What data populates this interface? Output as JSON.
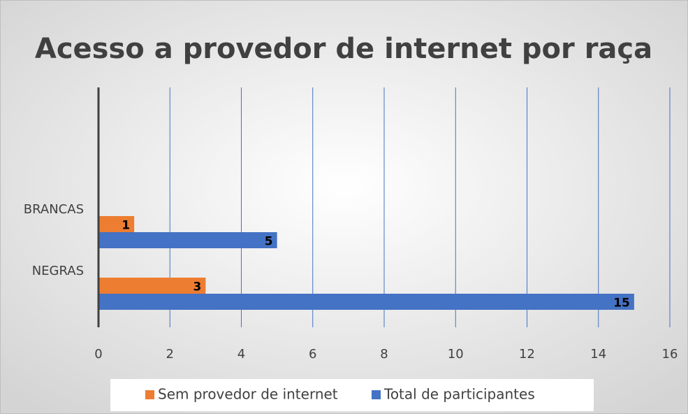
{
  "chart_data": {
    "type": "bar",
    "orientation": "horizontal",
    "title": "Acesso a provedor de internet por raça",
    "categories": [
      "NEGRAS",
      "BRANCAS"
    ],
    "series": [
      {
        "name": "Sem provedor de internet",
        "color": "#ed7d31",
        "values": [
          3,
          1
        ]
      },
      {
        "name": "Total de participantes",
        "color": "#4472c4",
        "values": [
          15,
          5
        ]
      }
    ],
    "xlim": [
      0,
      16
    ],
    "xticks": [
      0,
      2,
      4,
      6,
      8,
      10,
      12,
      14,
      16
    ],
    "grid": true,
    "legend": "bottom"
  }
}
